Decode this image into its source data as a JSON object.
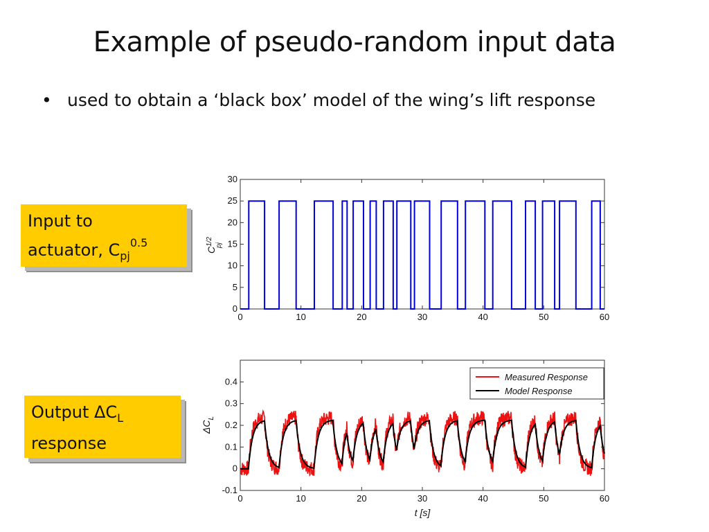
{
  "slide": {
    "title": "Example of pseudo-random input data",
    "bullet": "used to obtain a ‘black box’ model of the wing’s lift response"
  },
  "callouts": {
    "input": {
      "line1": "Input to",
      "line2": "actuator, C",
      "sub": "pj",
      "sup": "0.5"
    },
    "output": {
      "line1": "Output ΔC",
      "sub": "L",
      "line2": "response"
    }
  },
  "colors": {
    "callout_bg": "#ffcc00",
    "input_signal": "#0000dd",
    "measured": "#ee1111",
    "model": "#000000"
  },
  "chart_data": [
    {
      "type": "line",
      "title": "",
      "xlabel": "",
      "ylabel": "C",
      "ylabel_sub": "pj",
      "ylabel_sup": "1/2",
      "xlim": [
        0,
        60
      ],
      "ylim": [
        0,
        30
      ],
      "xticks": [
        0,
        10,
        20,
        30,
        40,
        50,
        60
      ],
      "yticks": [
        0,
        5,
        10,
        15,
        20,
        25,
        30
      ],
      "low": 0,
      "high": 25,
      "on_intervals": [
        [
          1.4,
          4.0
        ],
        [
          6.4,
          9.2
        ],
        [
          12.2,
          15.3
        ],
        [
          16.8,
          17.6
        ],
        [
          18.6,
          20.3
        ],
        [
          21.4,
          22.4
        ],
        [
          23.6,
          25.2
        ],
        [
          25.8,
          28.1
        ],
        [
          28.7,
          31.2
        ],
        [
          33.1,
          35.8
        ],
        [
          37.1,
          40.3
        ],
        [
          41.6,
          44.7
        ],
        [
          47.0,
          48.6
        ],
        [
          49.8,
          51.8
        ],
        [
          52.6,
          55.3
        ],
        [
          57.9,
          59.3
        ]
      ],
      "series": [
        {
          "values_from": "on_intervals"
        }
      ]
    },
    {
      "type": "line",
      "title": "",
      "xlabel": "t [s]",
      "ylabel": "ΔC",
      "ylabel_sub": "L",
      "xlim": [
        0,
        60
      ],
      "ylim": [
        -0.1,
        0.5
      ],
      "xticks": [
        0,
        10,
        20,
        30,
        40,
        50,
        60
      ],
      "yticks": [
        -0.1,
        0,
        0.1,
        0.2,
        0.3,
        0.4
      ],
      "legend": "top-right",
      "series": [
        {
          "name": "Measured Response",
          "base": 0.0,
          "gain": 0.235,
          "noise": 0.035,
          "tau": 0.55
        },
        {
          "name": "Model Response",
          "base": 0.0,
          "gain": 0.225,
          "tau": 0.7
        }
      ]
    }
  ]
}
